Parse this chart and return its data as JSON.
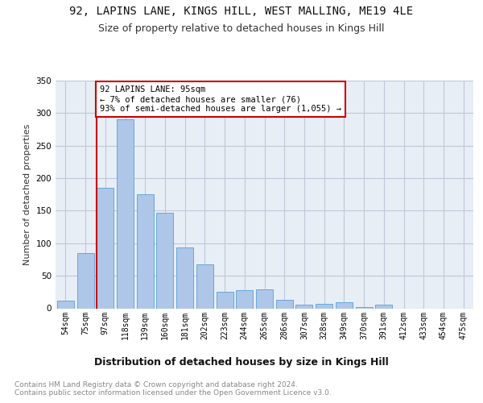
{
  "title": "92, LAPINS LANE, KINGS HILL, WEST MALLING, ME19 4LE",
  "subtitle": "Size of property relative to detached houses in Kings Hill",
  "xlabel": "Distribution of detached houses by size in Kings Hill",
  "ylabel": "Number of detached properties",
  "categories": [
    "54sqm",
    "75sqm",
    "97sqm",
    "118sqm",
    "139sqm",
    "160sqm",
    "181sqm",
    "202sqm",
    "223sqm",
    "244sqm",
    "265sqm",
    "286sqm",
    "307sqm",
    "328sqm",
    "349sqm",
    "370sqm",
    "391sqm",
    "412sqm",
    "433sqm",
    "454sqm",
    "475sqm"
  ],
  "values": [
    12,
    85,
    185,
    290,
    175,
    147,
    93,
    68,
    25,
    28,
    29,
    13,
    6,
    7,
    9,
    2,
    6,
    0,
    0,
    0,
    0
  ],
  "bar_color": "#aec6e8",
  "bar_edge_color": "#5a9fd4",
  "marker_line_color": "#cc0000",
  "annotation_text": "92 LAPINS LANE: 95sqm\n← 7% of detached houses are smaller (76)\n93% of semi-detached houses are larger (1,055) →",
  "annotation_box_color": "#ffffff",
  "annotation_box_edge_color": "#cc0000",
  "ylim": [
    0,
    350
  ],
  "yticks": [
    0,
    50,
    100,
    150,
    200,
    250,
    300,
    350
  ],
  "background_color": "#ffffff",
  "axes_facecolor": "#e8eef5",
  "grid_color": "#c0c8d8",
  "footer_text": "Contains HM Land Registry data © Crown copyright and database right 2024.\nContains public sector information licensed under the Open Government Licence v3.0.",
  "title_fontsize": 10,
  "subtitle_fontsize": 9,
  "xlabel_fontsize": 9,
  "ylabel_fontsize": 8,
  "tick_fontsize": 7,
  "annotation_fontsize": 7.5,
  "footer_fontsize": 6.5
}
